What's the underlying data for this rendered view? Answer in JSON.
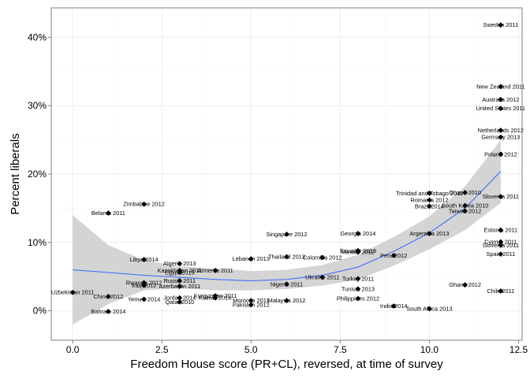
{
  "chart_data": {
    "type": "scatter",
    "title": "",
    "xlabel": "Freedom House score (PR+CL), reversed, at time of survey",
    "ylabel": "Percent liberals",
    "xlim": [
      -0.6,
      12.6
    ],
    "ylim": [
      -4.3,
      44.3
    ],
    "x_ticks": [
      0,
      2.5,
      5,
      7.5,
      10,
      12.5
    ],
    "x_tick_labels": [
      "0.0",
      "2.5",
      "5.0",
      "7.5",
      "10.0",
      "12.5"
    ],
    "y_ticks": [
      0,
      10,
      20,
      30,
      40
    ],
    "y_tick_labels": [
      "0%",
      "10%",
      "20%",
      "30%",
      "40%"
    ],
    "grid": true,
    "legend": "none",
    "colors": {
      "points": "#000000",
      "fit_line": "#3366ff",
      "ci_band": "#cccccc",
      "grid": "#ebebeb",
      "frame": "#7f7f7f",
      "text": "#000000"
    },
    "points": [
      {
        "label": "Sweden 2011",
        "x": 12,
        "y": 41.8
      },
      {
        "label": "New Zealand 2011",
        "x": 12,
        "y": 32.8
      },
      {
        "label": "Australia 2012",
        "x": 12,
        "y": 30.9
      },
      {
        "label": "United States 2011",
        "x": 12,
        "y": 29.6
      },
      {
        "label": "Netherlands 2012",
        "x": 12,
        "y": 26.4
      },
      {
        "label": "Germany 2013",
        "x": 12,
        "y": 25.4
      },
      {
        "label": "Poland 2012",
        "x": 12,
        "y": 22.9
      },
      {
        "label": "Slovenia 2011",
        "x": 12,
        "y": 16.7
      },
      {
        "label": "Estonia 2011",
        "x": 12,
        "y": 11.8
      },
      {
        "label": "Cyprus 2011",
        "x": 12,
        "y": 10.1
      },
      {
        "label": "Slovenia 2011",
        "x": 12,
        "y": 9.6
      },
      {
        "label": "Spain 2011",
        "x": 12,
        "y": 8.3
      },
      {
        "label": "Chile 2011",
        "x": 12,
        "y": 2.9
      },
      {
        "label": "Trinidad and Tobago 2011",
        "x": 10,
        "y": 17.2
      },
      {
        "label": "Ghana 2010",
        "x": 11,
        "y": 17.3
      },
      {
        "label": "Romania 2012",
        "x": 10,
        "y": 16.2
      },
      {
        "label": "Brazil 2014",
        "x": 10,
        "y": 15.3
      },
      {
        "label": "South Korea 2010",
        "x": 11,
        "y": 15.4
      },
      {
        "label": "Taiwan 2012",
        "x": 11,
        "y": 14.6
      },
      {
        "label": "Argentina 2013",
        "x": 10,
        "y": 11.3
      },
      {
        "label": "Ghana 2012",
        "x": 11,
        "y": 3.8
      },
      {
        "label": "South Africa 2013",
        "x": 10,
        "y": 0.3
      },
      {
        "label": "India 2014",
        "x": 9,
        "y": 0.7
      },
      {
        "label": "Peru 2012",
        "x": 9,
        "y": 8.1
      },
      {
        "label": "Georgia 2014",
        "x": 8,
        "y": 11.3
      },
      {
        "label": "Ecuador 2013",
        "x": 8,
        "y": 8.8
      },
      {
        "label": "Mexico 2012",
        "x": 8,
        "y": 8.6
      },
      {
        "label": "Turkey 2011",
        "x": 8,
        "y": 4.7
      },
      {
        "label": "Tunisia 2013",
        "x": 8,
        "y": 3.2
      },
      {
        "label": "Philippines 2012",
        "x": 8,
        "y": 1.8
      },
      {
        "label": "Ukraine 2011",
        "x": 7,
        "y": 4.9
      },
      {
        "label": "Colombia 2012",
        "x": 7,
        "y": 7.8
      },
      {
        "label": "Thailand 2013",
        "x": 6,
        "y": 7.9
      },
      {
        "label": "Singapore 2012",
        "x": 6,
        "y": 11.2
      },
      {
        "label": "Nigeria 2011",
        "x": 6,
        "y": 3.9
      },
      {
        "label": "Malaysia 2012",
        "x": 6,
        "y": 1.5
      },
      {
        "label": "Lebanon 2013",
        "x": 5,
        "y": 7.6
      },
      {
        "label": "Morocco 2011",
        "x": 5,
        "y": 1.5
      },
      {
        "label": "Pakistan 2012",
        "x": 5,
        "y": 0.9
      },
      {
        "label": "Armenia 2011",
        "x": 4,
        "y": 5.9
      },
      {
        "label": "Kyrgyzstan 2011",
        "x": 4,
        "y": 2.2
      },
      {
        "label": "Kuwait 2014",
        "x": 4,
        "y": 1.9
      },
      {
        "label": "Algeria 2013",
        "x": 3,
        "y": 6.9
      },
      {
        "label": "Kazakhstan 2011",
        "x": 3,
        "y": 5.9
      },
      {
        "label": "Egypt 2013",
        "x": 3,
        "y": 5.6
      },
      {
        "label": "Russia 2011",
        "x": 3,
        "y": 4.4
      },
      {
        "label": "Azerbaijan 2011",
        "x": 3,
        "y": 3.6
      },
      {
        "label": "Jordan 2014",
        "x": 3,
        "y": 1.9
      },
      {
        "label": "Qatar 2010",
        "x": 3,
        "y": 1.3
      },
      {
        "label": "Libya 2014",
        "x": 2,
        "y": 7.5
      },
      {
        "label": "Zimbabwe 2012",
        "x": 2,
        "y": 15.6
      },
      {
        "label": "Rwanda 2012",
        "x": 2,
        "y": 4.1
      },
      {
        "label": "Iraq 2012",
        "x": 2,
        "y": 3.7
      },
      {
        "label": "Yemen 2014",
        "x": 2,
        "y": 1.7
      },
      {
        "label": "Belarus 2011",
        "x": 1,
        "y": 14.3
      },
      {
        "label": "China 2012",
        "x": 1,
        "y": 2.1
      },
      {
        "label": "Bahrain 2014",
        "x": 1,
        "y": -0.1
      },
      {
        "label": "Uzbekistan 2011",
        "x": 0,
        "y": 2.7
      }
    ],
    "fit": {
      "method": "loess",
      "x": [
        0,
        1,
        2,
        3,
        4,
        5,
        6,
        7,
        8,
        9,
        10,
        11,
        12
      ],
      "y": [
        6.0,
        5.6,
        5.2,
        4.9,
        4.6,
        4.4,
        4.6,
        5.2,
        6.4,
        8.7,
        11.4,
        15.0,
        20.4
      ],
      "ci_lower": [
        -2.0,
        1.0,
        3.0,
        3.3,
        3.0,
        3.0,
        3.2,
        3.7,
        4.6,
        6.6,
        9.0,
        11.8,
        15.8
      ],
      "ci_upper": [
        14.0,
        9.6,
        7.4,
        6.5,
        6.2,
        5.8,
        6.0,
        6.7,
        8.2,
        10.8,
        13.8,
        18.2,
        25.0
      ]
    }
  }
}
